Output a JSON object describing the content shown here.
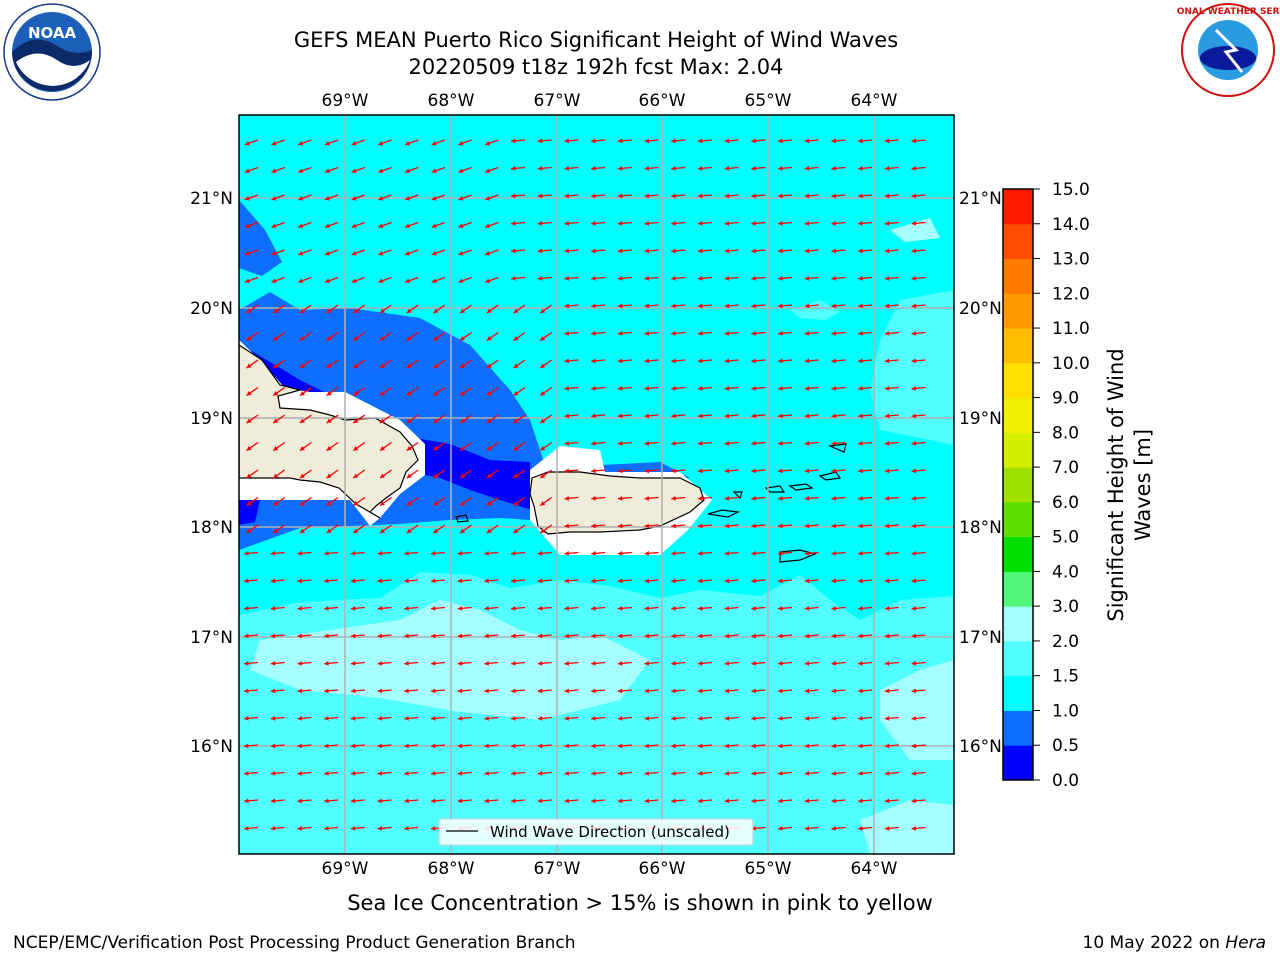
{
  "header": {
    "title_line1": "GEFS MEAN Puerto Rico Significant Height of Wind Waves",
    "title_line2": "20220509 t18z 192h fcst   Max: 2.04"
  },
  "logos": {
    "noaa_text": "NOAA",
    "nws_text": "NATIONAL WEATHER SERVICE"
  },
  "map": {
    "lon_labels": [
      "69°W",
      "68°W",
      "67°W",
      "66°W",
      "65°W",
      "64°W"
    ],
    "lat_labels": [
      "21°N",
      "20°N",
      "19°N",
      "18°N",
      "17°N",
      "16°N"
    ],
    "legend_label": "Wind Wave Direction (unscaled)",
    "arrow_color": "#ff0000",
    "land_color": "#efedda",
    "colors": {
      "0.0-0.5": "#0000ff",
      "0.5-1.0": "#0d6efd",
      "1.0-1.5": "#00ffff",
      "1.5-2.0": "#52ffff",
      "2.0-3.0": "#a5ffff"
    }
  },
  "colorbar": {
    "label_line1": "Significant Height of Wind",
    "label_line2": "Waves [m]",
    "ticks": [
      "0.0",
      "0.5",
      "1.0",
      "1.5",
      "2.0",
      "3.0",
      "4.0",
      "5.0",
      "6.0",
      "7.0",
      "8.0",
      "9.0",
      "10.0",
      "11.0",
      "12.0",
      "13.0",
      "14.0",
      "15.0"
    ],
    "colors": [
      "#0000ff",
      "#0d6efd",
      "#00ffff",
      "#52ffff",
      "#a5ffff",
      "#52f77a",
      "#00e000",
      "#5ce000",
      "#9ee000",
      "#d4f000",
      "#f0f000",
      "#ffe000",
      "#ffbf00",
      "#ff9900",
      "#ff7a00",
      "#ff4d00",
      "#ff1a00"
    ]
  },
  "footer": {
    "note": "Sea Ice Concentration > 15% is shown in pink to yellow",
    "credit": "NCEP/EMC/Verification Post Processing Product Generation Branch",
    "date_prefix": "10 May 2022 on ",
    "date_machine": "Hera"
  }
}
